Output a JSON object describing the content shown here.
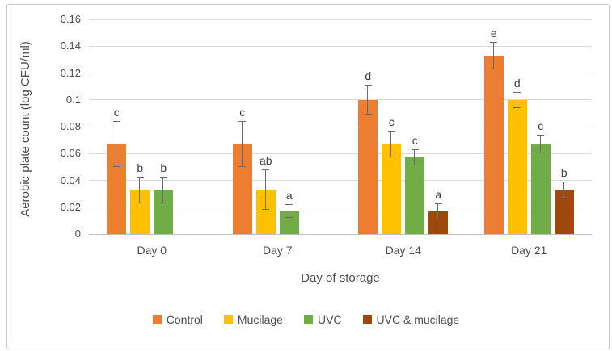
{
  "chart_data": {
    "type": "bar",
    "title": "",
    "xlabel": "Day of storage",
    "ylabel": "Aerobic plate count (log CFU/ml)",
    "categories": [
      "Day 0",
      "Day 7",
      "Day 14",
      "Day 21"
    ],
    "series": [
      {
        "name": "Control",
        "color": "#ED7D31",
        "values": [
          0.067,
          0.067,
          0.1,
          0.133
        ],
        "errors": [
          0.017,
          0.017,
          0.011,
          0.01
        ],
        "letters": [
          "c",
          "c",
          "d",
          "e"
        ]
      },
      {
        "name": "Mucilage",
        "color": "#FFC000",
        "values": [
          0.033,
          0.033,
          0.067,
          0.1
        ],
        "errors": [
          0.01,
          0.015,
          0.01,
          0.006
        ],
        "letters": [
          "b",
          "ab",
          "c",
          "d"
        ]
      },
      {
        "name": "UVC",
        "color": "#70AD47",
        "values": [
          0.033,
          0.017,
          0.057,
          0.067
        ],
        "errors": [
          0.01,
          0.005,
          0.006,
          0.007
        ],
        "letters": [
          "b",
          "a",
          "c",
          "c"
        ]
      },
      {
        "name": "UVC & mucilage",
        "color": "#9E480E",
        "values": [
          0,
          0,
          0.017,
          0.033
        ],
        "errors": [
          0,
          0,
          0.006,
          0.006
        ],
        "letters": [
          "",
          "",
          "a",
          "b"
        ]
      }
    ],
    "ylim": [
      0,
      0.16
    ],
    "ytick_step": 0.02,
    "ytick_labels": [
      "0",
      "0.02",
      "0.04",
      "0.06",
      "0.08",
      "0.1",
      "0.12",
      "0.14",
      "0.16"
    ],
    "grid": true,
    "legend_position": "bottom",
    "error_bar_color": "#6b6b6b",
    "gridline_color": "#d9d9d9"
  }
}
